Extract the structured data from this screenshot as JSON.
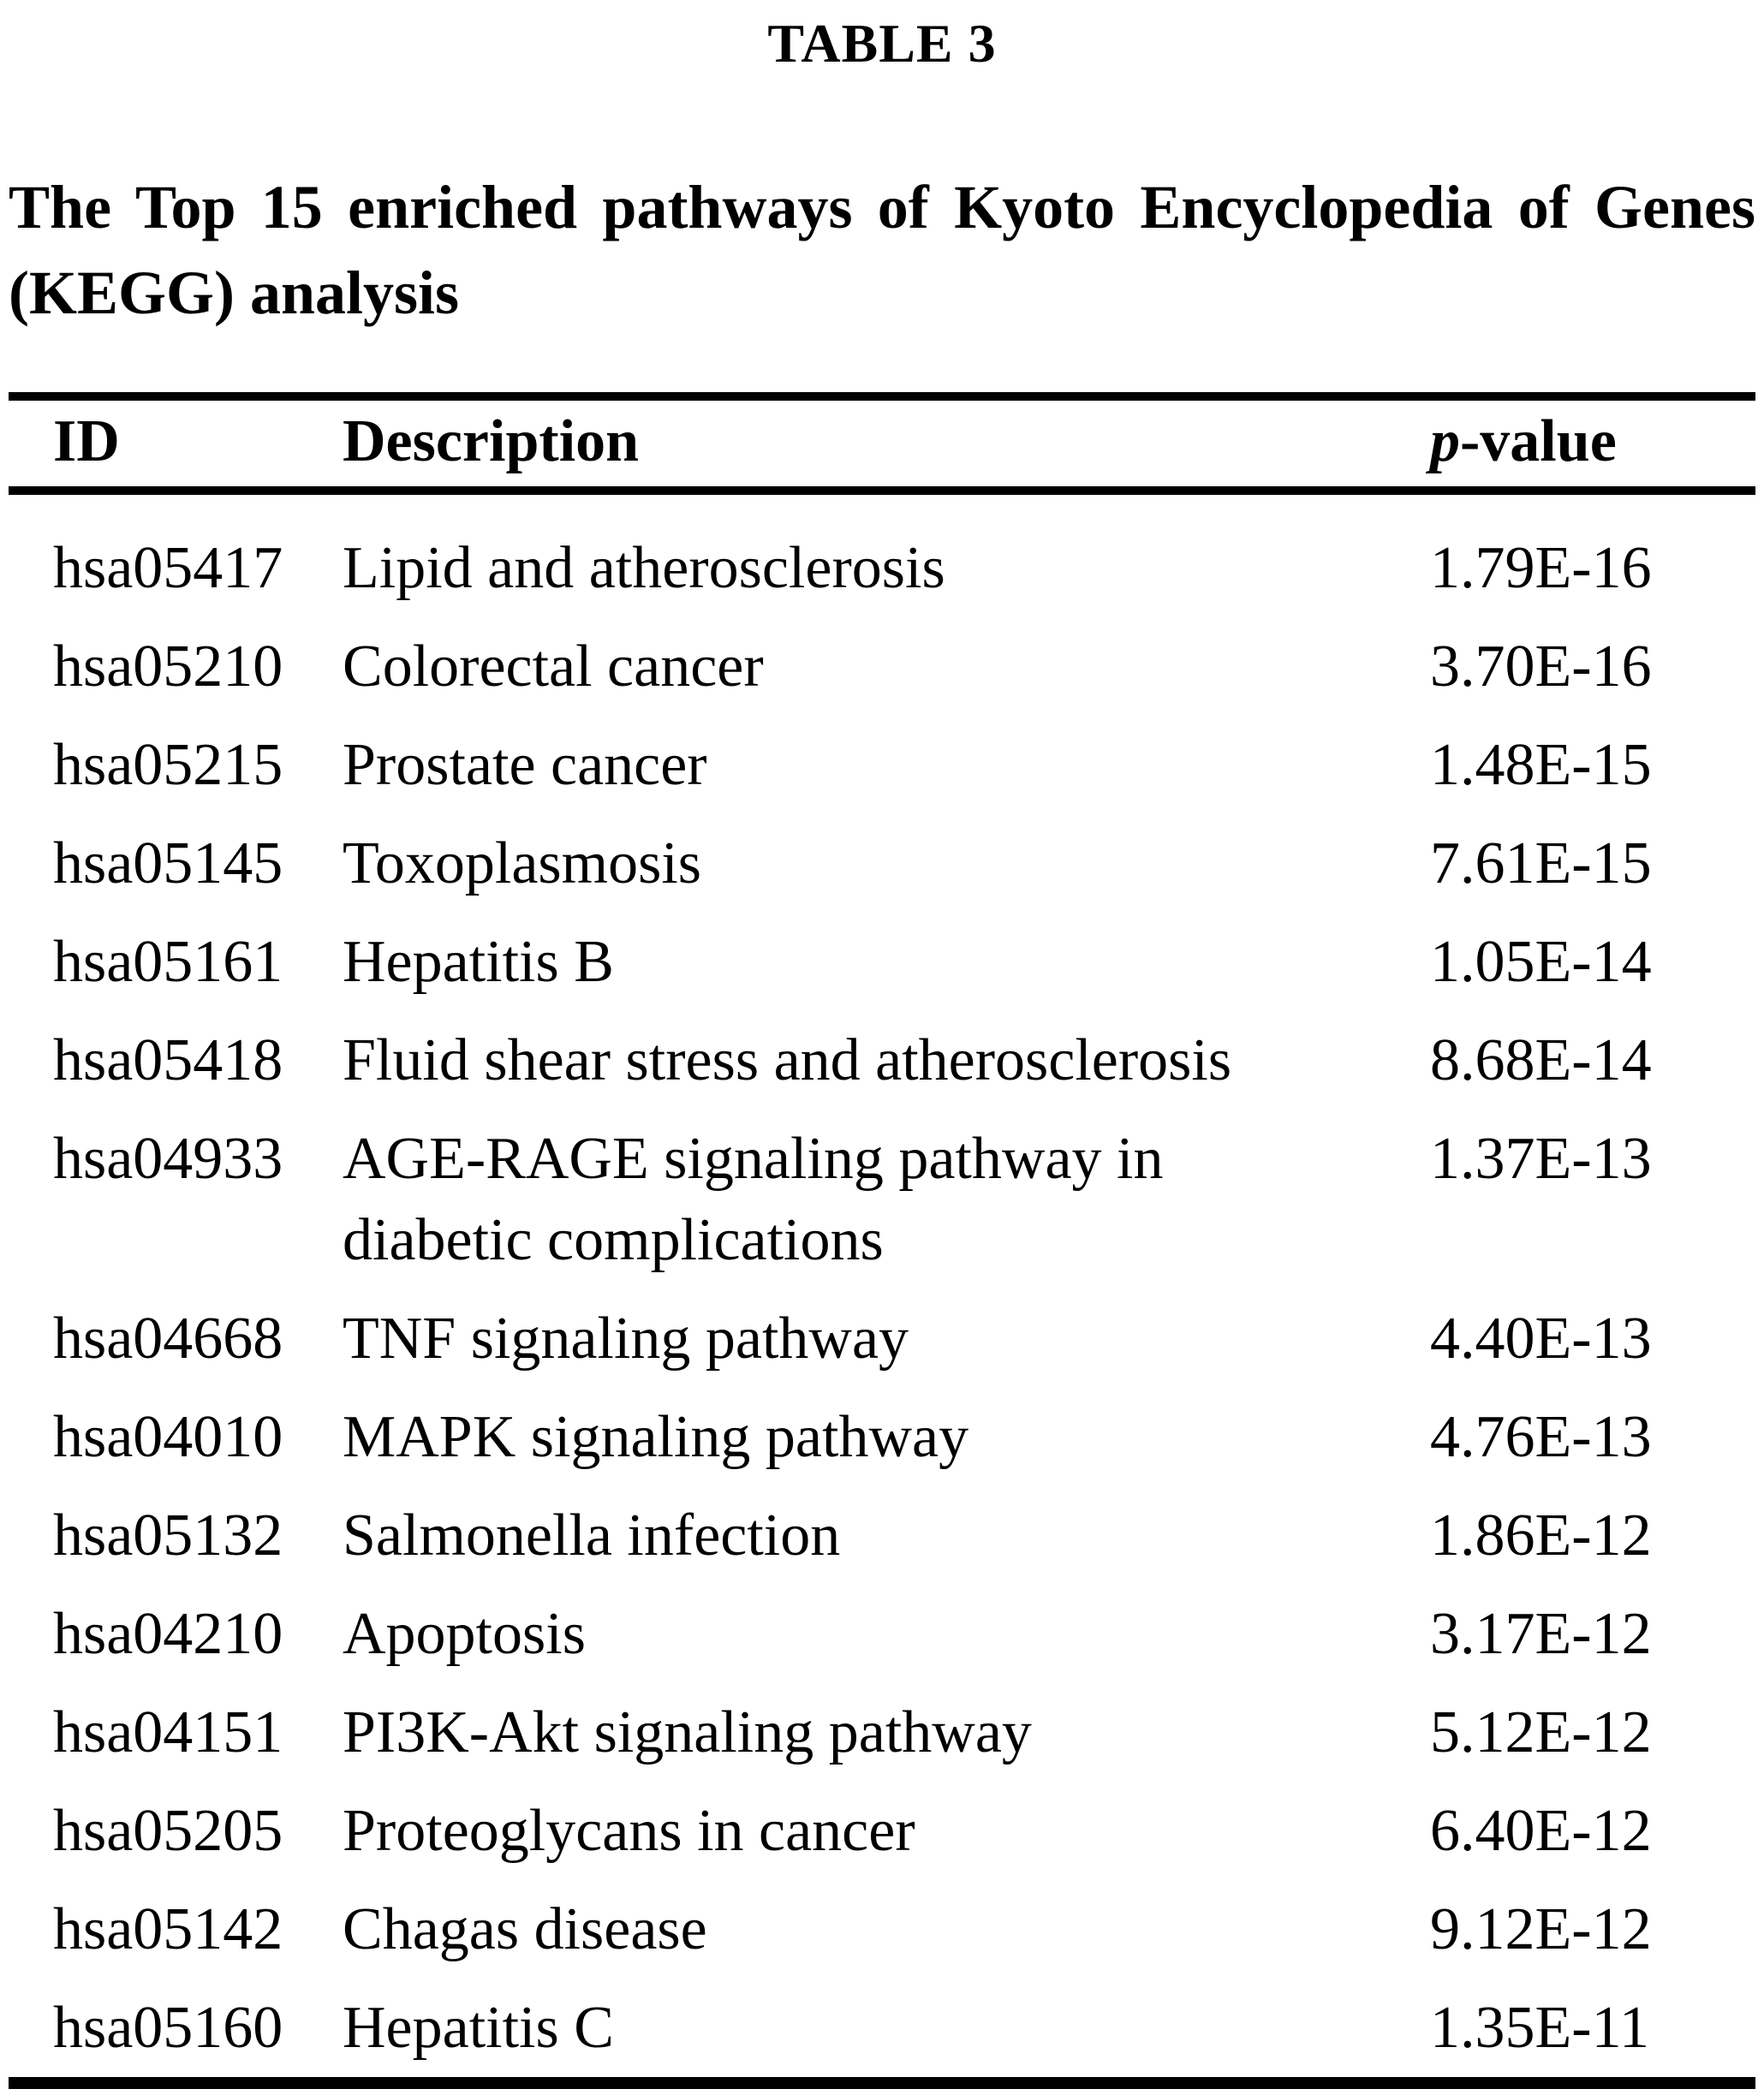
{
  "table_label": "TABLE 3",
  "caption": {
    "line1": "The Top 15 enriched pathways of Kyoto Encyclopedia of Genes",
    "line2": "(KEGG) analysis"
  },
  "table": {
    "columns": {
      "id": "ID",
      "description": "Description",
      "pvalue_italic": "p",
      "pvalue_rest": "-value"
    },
    "rows": [
      {
        "id": "hsa05417",
        "description": "Lipid and atherosclerosis",
        "pvalue": "1.79E-16"
      },
      {
        "id": "hsa05210",
        "description": "Colorectal cancer",
        "pvalue": "3.70E-16"
      },
      {
        "id": "hsa05215",
        "description": "Prostate cancer",
        "pvalue": "1.48E-15"
      },
      {
        "id": "hsa05145",
        "description": "Toxoplasmosis",
        "pvalue": "7.61E-15"
      },
      {
        "id": "hsa05161",
        "description": "Hepatitis B",
        "pvalue": "1.05E-14"
      },
      {
        "id": "hsa05418",
        "description": "Fluid shear stress and atherosclerosis",
        "pvalue": "8.68E-14"
      },
      {
        "id": "hsa04933",
        "description": "AGE-RAGE signaling pathway in\ndiabetic complications",
        "pvalue": "1.37E-13"
      },
      {
        "id": "hsa04668",
        "description": "TNF signaling pathway",
        "pvalue": "4.40E-13"
      },
      {
        "id": "hsa04010",
        "description": "MAPK signaling pathway",
        "pvalue": "4.76E-13"
      },
      {
        "id": "hsa05132",
        "description": "Salmonella infection",
        "pvalue": "1.86E-12"
      },
      {
        "id": "hsa04210",
        "description": "Apoptosis",
        "pvalue": "3.17E-12"
      },
      {
        "id": "hsa04151",
        "description": "PI3K-Akt signaling pathway",
        "pvalue": "5.12E-12"
      },
      {
        "id": "hsa05205",
        "description": "Proteoglycans in cancer",
        "pvalue": "6.40E-12"
      },
      {
        "id": "hsa05142",
        "description": "Chagas disease",
        "pvalue": "9.12E-12"
      },
      {
        "id": "hsa05160",
        "description": "Hepatitis C",
        "pvalue": "1.35E-11"
      }
    ]
  }
}
